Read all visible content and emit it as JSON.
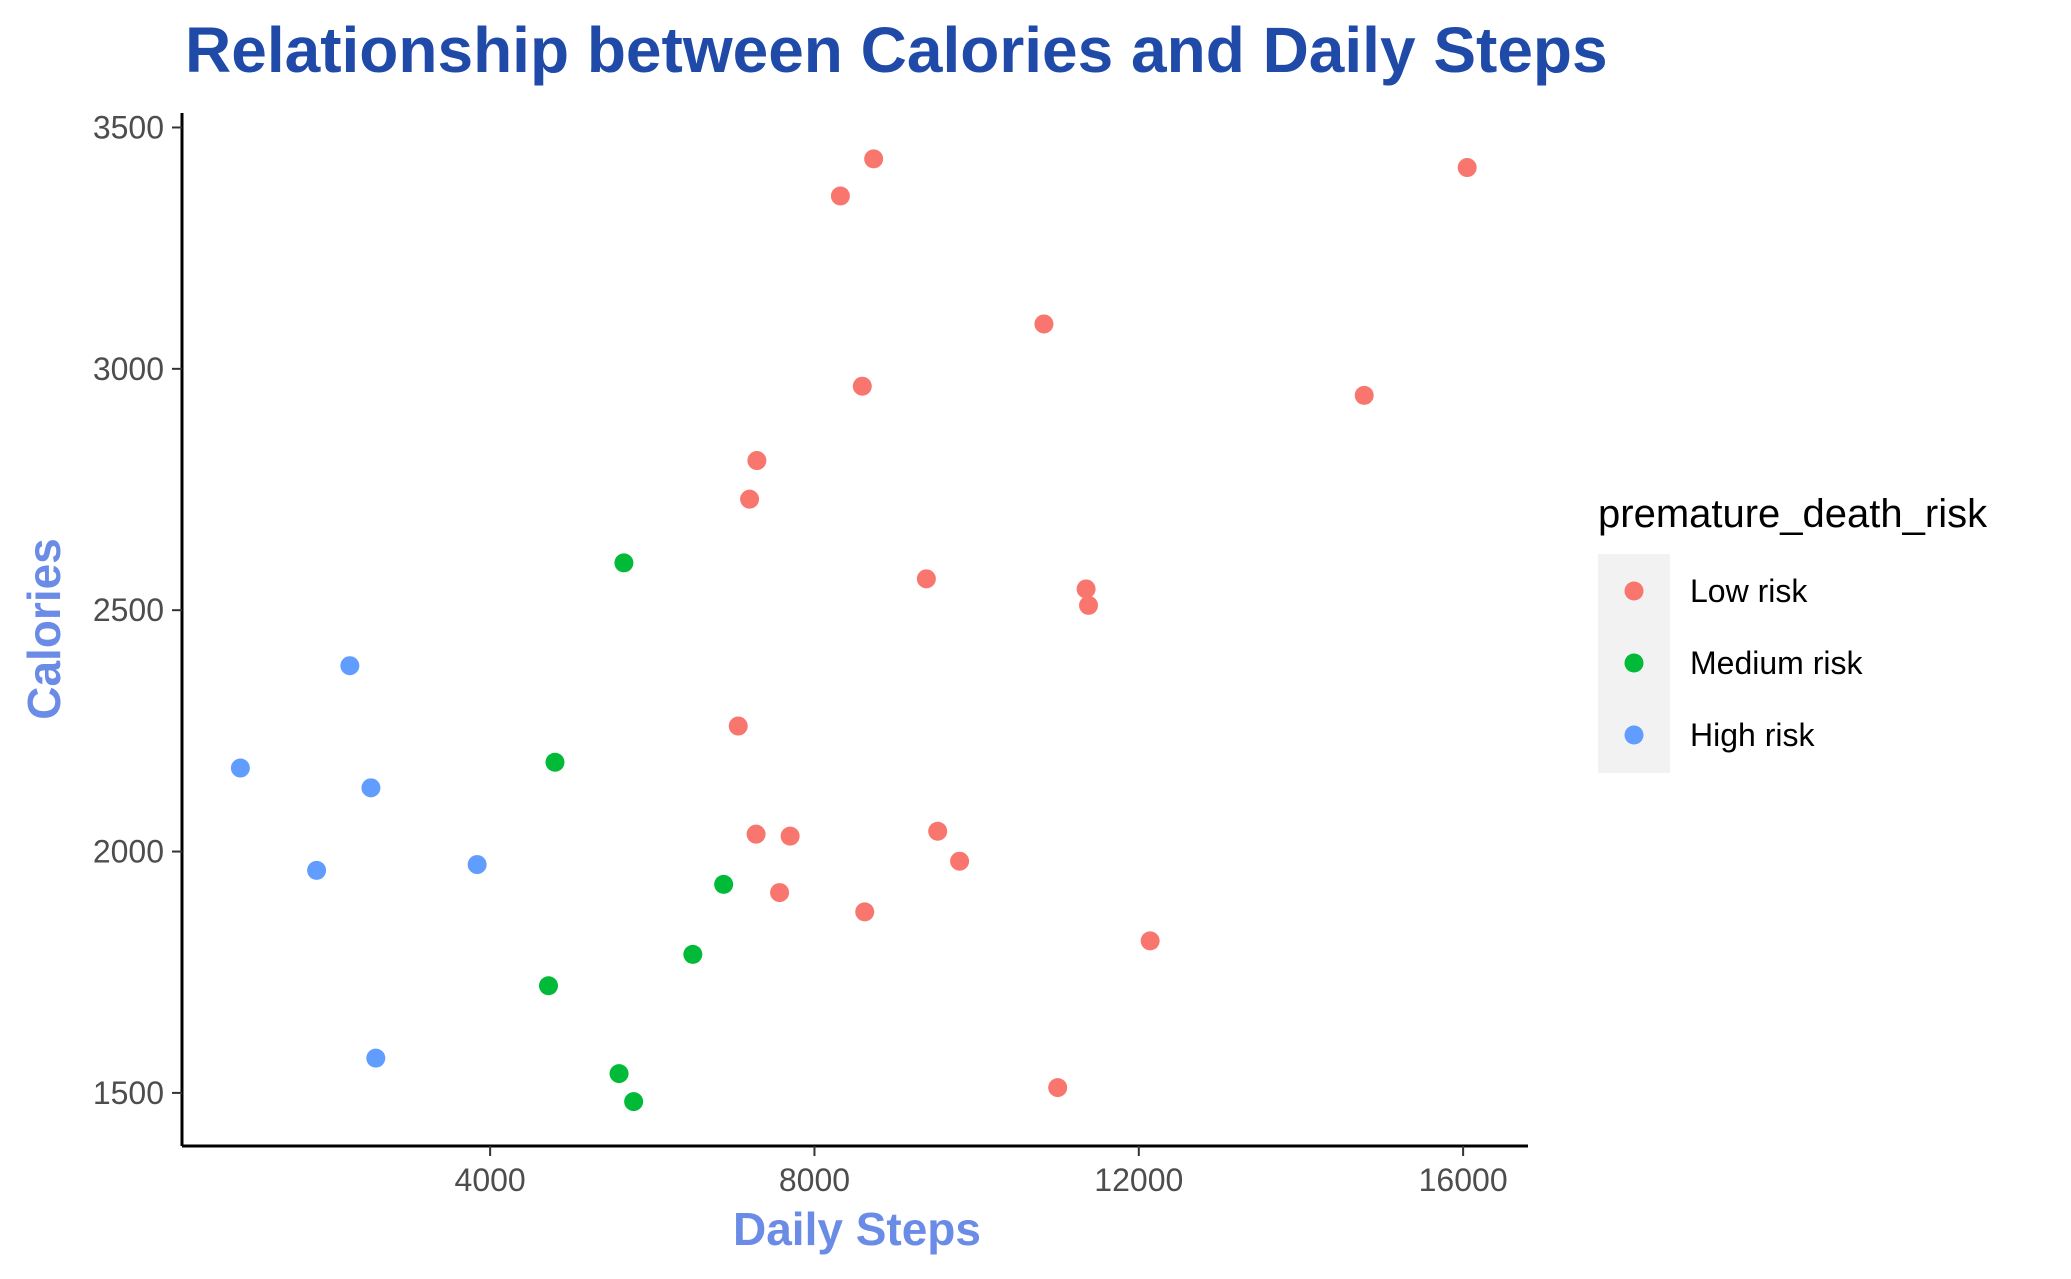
{
  "chart_data": {
    "type": "scatter",
    "title": "Relationship between Calories and Daily Steps",
    "xlabel": "Daily Steps",
    "ylabel": "Calories",
    "xlim": [
      200,
      16800
    ],
    "ylim": [
      1390,
      3530
    ],
    "x_ticks": [
      4000,
      8000,
      12000,
      16000
    ],
    "y_ticks": [
      1500,
      2000,
      2500,
      3000,
      3500
    ],
    "x_tick_labels": [
      "4000",
      "8000",
      "12000",
      "16000"
    ],
    "y_tick_labels": [
      "1500",
      "2000",
      "2500",
      "3000",
      "3500"
    ],
    "grid": false,
    "legend": {
      "title": "premature_death_risk",
      "position": "right",
      "entries": [
        "Low risk",
        "Medium risk",
        "High risk"
      ]
    },
    "series": [
      {
        "name": "Low risk",
        "color": "#f8766d",
        "points": [
          {
            "x": 8730,
            "y": 3435
          },
          {
            "x": 8320,
            "y": 3358
          },
          {
            "x": 16050,
            "y": 3417
          },
          {
            "x": 10830,
            "y": 3093
          },
          {
            "x": 8590,
            "y": 2964
          },
          {
            "x": 14780,
            "y": 2945
          },
          {
            "x": 7290,
            "y": 2810
          },
          {
            "x": 7200,
            "y": 2730
          },
          {
            "x": 9380,
            "y": 2565
          },
          {
            "x": 11350,
            "y": 2544
          },
          {
            "x": 11380,
            "y": 2510
          },
          {
            "x": 7060,
            "y": 2260
          },
          {
            "x": 7280,
            "y": 2036
          },
          {
            "x": 7700,
            "y": 2032
          },
          {
            "x": 9520,
            "y": 2042
          },
          {
            "x": 9790,
            "y": 1980
          },
          {
            "x": 7570,
            "y": 1915
          },
          {
            "x": 8620,
            "y": 1875
          },
          {
            "x": 12140,
            "y": 1815
          },
          {
            "x": 11000,
            "y": 1511
          }
        ]
      },
      {
        "name": "Medium risk",
        "color": "#00ba38",
        "points": [
          {
            "x": 5650,
            "y": 2598
          },
          {
            "x": 4800,
            "y": 2185
          },
          {
            "x": 6880,
            "y": 1932
          },
          {
            "x": 6500,
            "y": 1787
          },
          {
            "x": 4720,
            "y": 1722
          },
          {
            "x": 5590,
            "y": 1540
          },
          {
            "x": 5770,
            "y": 1482
          }
        ]
      },
      {
        "name": "High risk",
        "color": "#619cff",
        "points": [
          {
            "x": 2270,
            "y": 2385
          },
          {
            "x": 920,
            "y": 2173
          },
          {
            "x": 2530,
            "y": 2132
          },
          {
            "x": 1860,
            "y": 1961
          },
          {
            "x": 3840,
            "y": 1973
          },
          {
            "x": 2590,
            "y": 1572
          }
        ]
      }
    ]
  }
}
